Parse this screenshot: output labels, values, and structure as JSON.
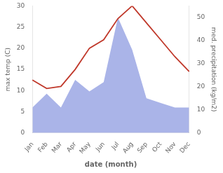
{
  "chart_data": {
    "type": "line",
    "categories": [
      "Jan",
      "Feb",
      "Mar",
      "Apr",
      "May",
      "Jun",
      "Jul",
      "Aug",
      "Sep",
      "Oct",
      "Nov",
      "Dec"
    ],
    "series": [
      {
        "type": "area",
        "color": "#aab4e8",
        "axis": "y2",
        "values": [
          11,
          17,
          11,
          23,
          18,
          22,
          50,
          36,
          15,
          13,
          11,
          11
        ]
      },
      {
        "type": "line",
        "color": "#c0392b",
        "values": [
          12.5,
          10.5,
          11.0,
          15.0,
          20.0,
          22.0,
          27.0,
          30.0,
          26.0,
          22.0,
          18.0,
          14.5
        ]
      }
    ],
    "xlabel": "date (month)",
    "ylabel": "max temp (C)",
    "y2label": "med. precipitation (kg/m2)",
    "ylim": [
      0,
      30
    ],
    "yticks": [
      0,
      5,
      10,
      15,
      20,
      25,
      30
    ],
    "y2lim": [
      0,
      55
    ],
    "y2ticks": [
      0,
      10,
      20,
      30,
      40,
      50
    ],
    "grid": false
  }
}
